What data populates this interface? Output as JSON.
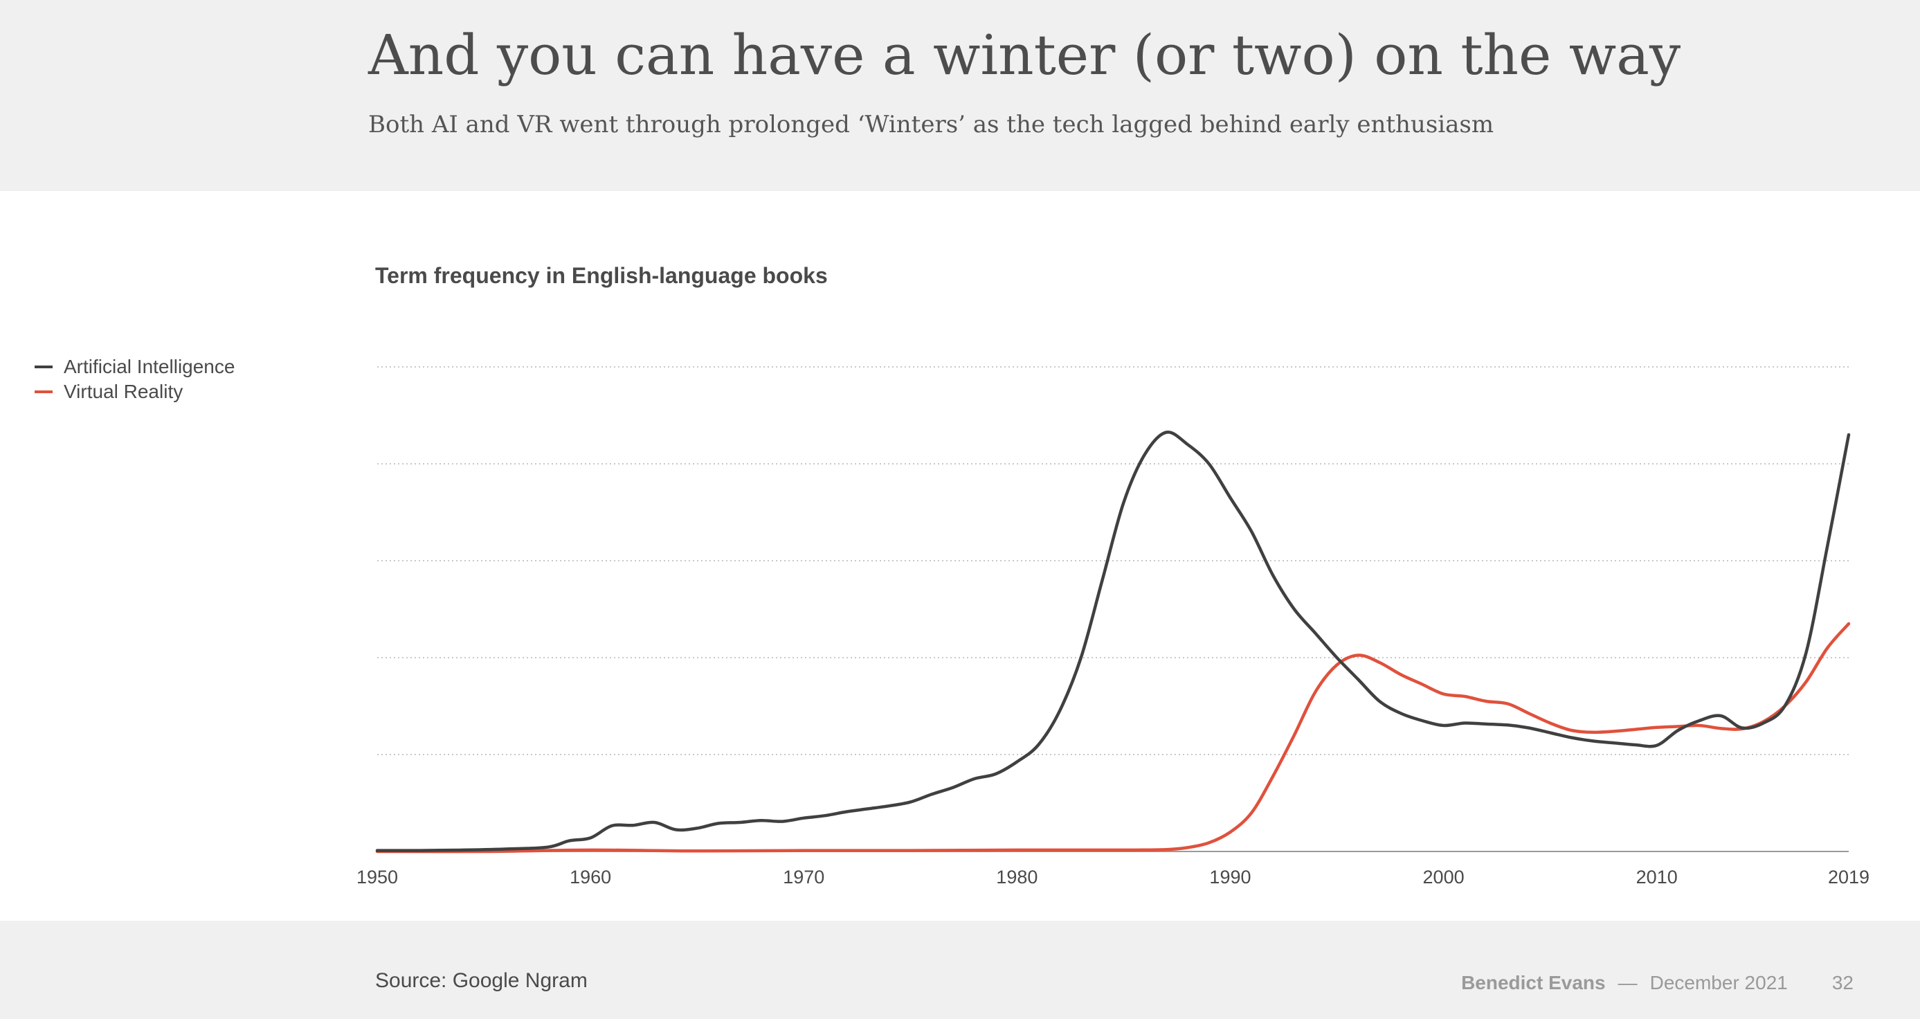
{
  "slide": {
    "title": "And you can have a winter (or two) on the way",
    "subtitle": "Both AI and VR went through prolonged ‘Winters’ as the tech lagged behind early enthusiasm"
  },
  "footer": {
    "source": "Source: Google Ngram",
    "author": "Benedict Evans",
    "dash": "—",
    "date": "December 2021",
    "page": "32"
  },
  "chart_data": {
    "type": "line",
    "title": "Term frequency in English-language books",
    "xlabel": "",
    "ylabel": "",
    "xlim": [
      1950,
      2019
    ],
    "ylim": [
      0,
      100
    ],
    "x_ticks": [
      "1950",
      "1960",
      "1970",
      "1980",
      "1990",
      "2000",
      "2010",
      "2019"
    ],
    "grid": true,
    "legend_position": "left",
    "series": [
      {
        "name": "Artificial Intelligence",
        "color": "#404040",
        "x": [
          1950,
          1952,
          1954,
          1956,
          1958,
          1959,
          1960,
          1961,
          1962,
          1963,
          1964,
          1965,
          1966,
          1967,
          1968,
          1969,
          1970,
          1971,
          1972,
          1973,
          1974,
          1975,
          1976,
          1977,
          1978,
          1979,
          1980,
          1981,
          1982,
          1983,
          1984,
          1985,
          1986,
          1987,
          1988,
          1989,
          1990,
          1991,
          1992,
          1993,
          1994,
          1995,
          1996,
          1997,
          1998,
          1999,
          2000,
          2001,
          2002,
          2003,
          2004,
          2005,
          2006,
          2007,
          2008,
          2009,
          2010,
          2011,
          2012,
          2013,
          2014,
          2015,
          2016,
          2017,
          2018,
          2019
        ],
        "values": [
          0.2,
          0.2,
          0.3,
          0.5,
          0.9,
          2.2,
          2.8,
          5.3,
          5.4,
          6,
          4.5,
          4.8,
          5.8,
          6,
          6.4,
          6.2,
          6.9,
          7.4,
          8.2,
          8.8,
          9.4,
          10.2,
          11.8,
          13.2,
          15,
          16,
          18.5,
          22,
          29,
          40,
          56,
          72,
          82,
          86.5,
          84,
          80,
          73,
          66,
          57,
          50,
          45,
          40,
          35.5,
          31,
          28.5,
          27,
          26,
          26.5,
          26.3,
          26.1,
          25.5,
          24.5,
          23.5,
          22.8,
          22.4,
          22,
          21.9,
          25,
          27,
          28,
          25.5,
          26.5,
          30,
          41,
          63,
          86
        ]
      },
      {
        "name": "Virtual Reality",
        "color": "#e0513c",
        "x": [
          1950,
          1955,
          1960,
          1965,
          1970,
          1975,
          1980,
          1985,
          1987,
          1988,
          1989,
          1990,
          1991,
          1992,
          1993,
          1994,
          1995,
          1996,
          1997,
          1998,
          1999,
          2000,
          2001,
          2002,
          2003,
          2004,
          2005,
          2006,
          2007,
          2008,
          2009,
          2010,
          2011,
          2012,
          2013,
          2014,
          2015,
          2016,
          2017,
          2018,
          2019
        ],
        "values": [
          0,
          0,
          0.3,
          0.1,
          0.2,
          0.2,
          0.3,
          0.3,
          0.4,
          0.8,
          1.8,
          4,
          8,
          15.5,
          24,
          33,
          38.5,
          40.5,
          39,
          36.5,
          34.5,
          32.5,
          32,
          31,
          30.5,
          28.5,
          26.5,
          25,
          24.6,
          24.8,
          25.2,
          25.6,
          25.8,
          26,
          25.4,
          25.3,
          26.8,
          30,
          35,
          42,
          47
        ]
      }
    ]
  }
}
